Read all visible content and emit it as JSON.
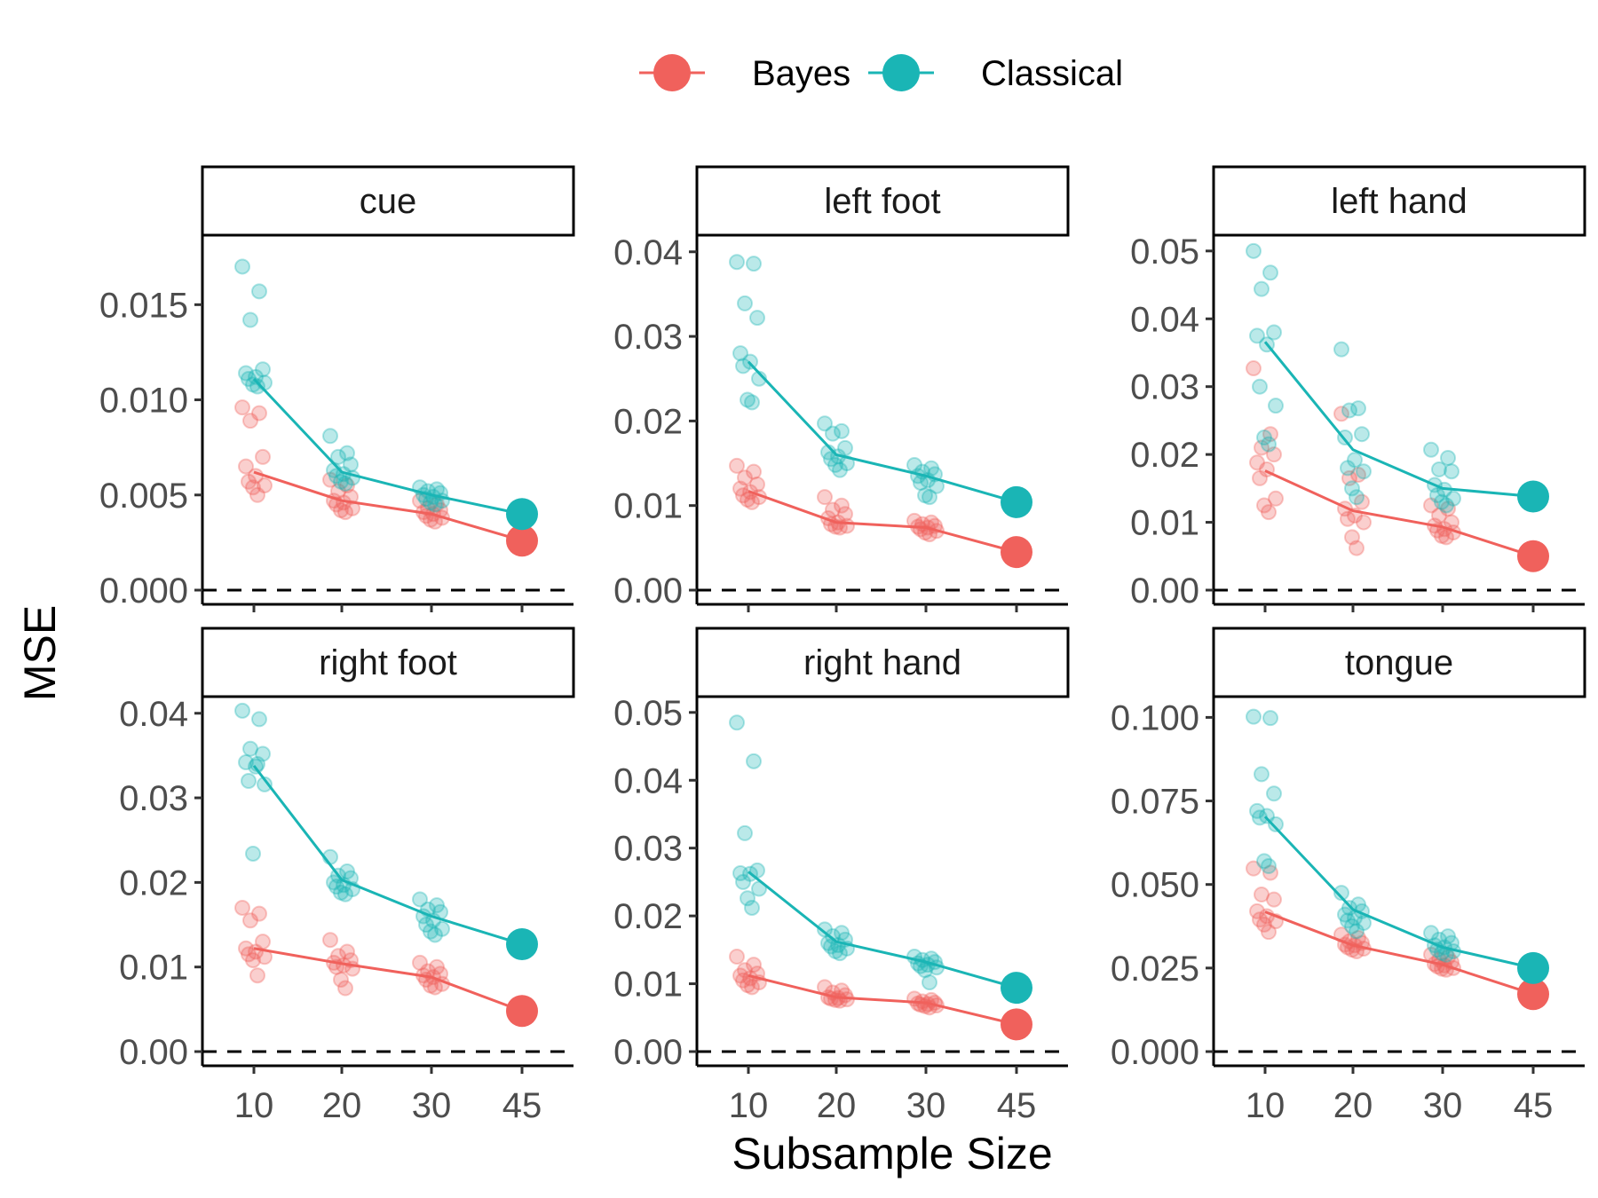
{
  "chart_data": {
    "type": "scatter",
    "xlabel": "Subsample Size",
    "ylabel": "MSE",
    "x_categories": [
      10,
      20,
      30,
      45
    ],
    "legend": {
      "position": "top",
      "entries": [
        {
          "name": "Bayes",
          "color": "#F0615C"
        },
        {
          "name": "Classical",
          "color": "#1AB5B5"
        }
      ]
    },
    "reference_line": {
      "y": 0,
      "style": "dashed"
    },
    "panels": [
      {
        "label": "cue",
        "ylim": [
          0,
          0.018
        ],
        "ticks": [
          0,
          0.005,
          0.01,
          0.015
        ],
        "tick_labels": [
          "0.000",
          "0.005",
          "0.010",
          "0.015"
        ],
        "series": [
          {
            "name": "Bayes",
            "mean": [
              0.0062,
              0.0047,
              0.004,
              0.0026
            ],
            "points": [
              [
                0.0096,
                0.0093,
                0.0089,
                0.007,
                0.0065,
                0.006,
                0.0057,
                0.0055,
                0.0054,
                0.005
              ],
              [
                0.0058,
                0.0055,
                0.0052,
                0.0049,
                0.0047,
                0.0046,
                0.0045,
                0.0043,
                0.0042,
                0.0041
              ],
              [
                0.0047,
                0.0045,
                0.0043,
                0.0042,
                0.0041,
                0.004,
                0.0039,
                0.0038,
                0.0037,
                0.0036
              ]
            ]
          },
          {
            "name": "Classical",
            "mean": [
              0.0111,
              0.0062,
              0.005,
              0.004
            ],
            "points": [
              [
                0.017,
                0.0157,
                0.0142,
                0.0116,
                0.0114,
                0.0112,
                0.0111,
                0.0109,
                0.0108,
                0.0107
              ],
              [
                0.0081,
                0.0072,
                0.007,
                0.0066,
                0.0063,
                0.0061,
                0.006,
                0.0059,
                0.0057,
                0.0056
              ],
              [
                0.0054,
                0.0053,
                0.0052,
                0.0051,
                0.005,
                0.0049,
                0.0048,
                0.0047,
                0.0046,
                0.0045
              ]
            ]
          }
        ]
      },
      {
        "label": "left foot",
        "ylim": [
          0,
          0.0405
        ],
        "ticks": [
          0,
          0.01,
          0.02,
          0.03,
          0.04
        ],
        "tick_labels": [
          "0.00",
          "0.01",
          "0.02",
          "0.03",
          "0.04"
        ],
        "series": [
          {
            "name": "Bayes",
            "mean": [
              0.0117,
              0.008,
              0.0074,
              0.0045
            ],
            "points": [
              [
                0.0147,
                0.014,
                0.0133,
                0.0125,
                0.012,
                0.0116,
                0.0112,
                0.011,
                0.0107,
                0.0104
              ],
              [
                0.011,
                0.01,
                0.0095,
                0.009,
                0.0085,
                0.008,
                0.0078,
                0.0076,
                0.0075,
                0.0074
              ],
              [
                0.0082,
                0.008,
                0.0078,
                0.0076,
                0.0075,
                0.0074,
                0.0072,
                0.007,
                0.0068,
                0.0066
              ]
            ]
          },
          {
            "name": "Classical",
            "mean": [
              0.027,
              0.016,
              0.0135,
              0.0104
            ],
            "points": [
              [
                0.0388,
                0.0386,
                0.0339,
                0.0322,
                0.028,
                0.027,
                0.0265,
                0.025,
                0.0225,
                0.0222
              ],
              [
                0.0197,
                0.0188,
                0.0185,
                0.0168,
                0.0163,
                0.0158,
                0.0155,
                0.015,
                0.0148,
                0.0142
              ],
              [
                0.0148,
                0.0144,
                0.014,
                0.0137,
                0.0135,
                0.013,
                0.0127,
                0.0123,
                0.0112,
                0.011
              ]
            ]
          }
        ]
      },
      {
        "label": "left hand",
        "ylim": [
          0,
          0.0505
        ],
        "ticks": [
          0,
          0.01,
          0.02,
          0.03,
          0.04,
          0.05
        ],
        "tick_labels": [
          "0.00",
          "0.01",
          "0.02",
          "0.03",
          "0.04",
          "0.05"
        ],
        "series": [
          {
            "name": "Bayes",
            "mean": [
              0.0176,
              0.0117,
              0.0093,
              0.005
            ],
            "points": [
              [
                0.0327,
                0.023,
                0.021,
                0.02,
                0.0188,
                0.0178,
                0.0165,
                0.0135,
                0.0125,
                0.0115
              ],
              [
                0.026,
                0.017,
                0.0165,
                0.013,
                0.012,
                0.011,
                0.0105,
                0.01,
                0.0078,
                0.0062
              ],
              [
                0.0125,
                0.012,
                0.011,
                0.01,
                0.0095,
                0.009,
                0.0088,
                0.0085,
                0.008,
                0.0078
              ]
            ]
          },
          {
            "name": "Classical",
            "mean": [
              0.0366,
              0.0207,
              0.015,
              0.0138
            ],
            "points": [
              [
                0.05,
                0.0468,
                0.0444,
                0.038,
                0.0375,
                0.0362,
                0.03,
                0.0272,
                0.0225,
                0.0215
              ],
              [
                0.0355,
                0.0268,
                0.0265,
                0.023,
                0.0225,
                0.0192,
                0.018,
                0.0175,
                0.015,
                0.0137
              ],
              [
                0.0207,
                0.0195,
                0.0178,
                0.0175,
                0.0155,
                0.0148,
                0.014,
                0.0135,
                0.013,
                0.0125
              ]
            ]
          }
        ]
      },
      {
        "label": "right foot",
        "ylim": [
          0,
          0.0405
        ],
        "ticks": [
          0,
          0.01,
          0.02,
          0.03,
          0.04
        ],
        "tick_labels": [
          "0.00",
          "0.01",
          "0.02",
          "0.03",
          "0.04"
        ],
        "series": [
          {
            "name": "Bayes",
            "mean": [
              0.0122,
              0.0104,
              0.0088,
              0.0048
            ],
            "points": [
              [
                0.017,
                0.0163,
                0.0155,
                0.013,
                0.0122,
                0.0118,
                0.0115,
                0.0112,
                0.0108,
                0.009
              ],
              [
                0.0132,
                0.0118,
                0.0113,
                0.0108,
                0.0105,
                0.0102,
                0.01,
                0.0098,
                0.0085,
                0.0075
              ],
              [
                0.0105,
                0.01,
                0.0095,
                0.0092,
                0.009,
                0.0088,
                0.0085,
                0.008,
                0.0078,
                0.0076
              ]
            ]
          },
          {
            "name": "Classical",
            "mean": [
              0.0338,
              0.0203,
              0.016,
              0.0127
            ],
            "points": [
              [
                0.0403,
                0.0393,
                0.0358,
                0.0352,
                0.0342,
                0.0337,
                0.032,
                0.0316,
                0.0234,
                0.034
              ],
              [
                0.023,
                0.0213,
                0.0208,
                0.0205,
                0.02,
                0.0197,
                0.0195,
                0.0192,
                0.0188,
                0.0186
              ],
              [
                0.018,
                0.0173,
                0.0168,
                0.0165,
                0.016,
                0.0155,
                0.015,
                0.0145,
                0.0142,
                0.0138
              ]
            ]
          }
        ]
      },
      {
        "label": "right hand",
        "ylim": [
          0,
          0.0505
        ],
        "ticks": [
          0,
          0.01,
          0.02,
          0.03,
          0.04,
          0.05
        ],
        "tick_labels": [
          "0.00",
          "0.01",
          "0.02",
          "0.03",
          "0.04",
          "0.05"
        ],
        "series": [
          {
            "name": "Bayes",
            "mean": [
              0.0112,
              0.008,
              0.0072,
              0.004
            ],
            "points": [
              [
                0.014,
                0.0128,
                0.012,
                0.0115,
                0.0112,
                0.0108,
                0.0105,
                0.0102,
                0.0098,
                0.0095
              ],
              [
                0.0095,
                0.009,
                0.0087,
                0.0083,
                0.008,
                0.0079,
                0.0078,
                0.0077,
                0.0076,
                0.0075
              ],
              [
                0.0078,
                0.0076,
                0.0074,
                0.0072,
                0.0071,
                0.007,
                0.0069,
                0.0068,
                0.0067,
                0.0065
              ]
            ]
          },
          {
            "name": "Classical",
            "mean": [
              0.0265,
              0.0162,
              0.0132,
              0.0094
            ],
            "points": [
              [
                0.0485,
                0.0428,
                0.0322,
                0.0267,
                0.0263,
                0.0262,
                0.025,
                0.024,
                0.0226,
                0.0212
              ],
              [
                0.018,
                0.0175,
                0.017,
                0.0165,
                0.016,
                0.0157,
                0.0155,
                0.0152,
                0.0148,
                0.0145
              ],
              [
                0.014,
                0.0137,
                0.0135,
                0.0132,
                0.013,
                0.0128,
                0.0126,
                0.0124,
                0.012,
                0.0102
              ]
            ]
          }
        ]
      },
      {
        "label": "tongue",
        "ylim": [
          0,
          0.1025
        ],
        "ticks": [
          0,
          0.025,
          0.05,
          0.075,
          0.1
        ],
        "tick_labels": [
          "0.000",
          "0.025",
          "0.050",
          "0.075",
          "0.100"
        ],
        "series": [
          {
            "name": "Bayes",
            "mean": [
              0.0418,
              0.0318,
              0.026,
              0.0172
            ],
            "points": [
              [
                0.0548,
                0.0535,
                0.047,
                0.0455,
                0.042,
                0.0405,
                0.0395,
                0.039,
                0.038,
                0.0358
              ],
              [
                0.035,
                0.034,
                0.033,
                0.0325,
                0.032,
                0.0318,
                0.0312,
                0.0308,
                0.0305,
                0.03
              ],
              [
                0.029,
                0.0282,
                0.0275,
                0.0268,
                0.0262,
                0.0258,
                0.0255,
                0.025,
                0.0248,
                0.0245
              ]
            ]
          },
          {
            "name": "Classical",
            "mean": [
              0.0703,
              0.0425,
              0.0312,
              0.025
            ],
            "points": [
              [
                0.1002,
                0.0998,
                0.083,
                0.0772,
                0.072,
                0.0705,
                0.07,
                0.068,
                0.057,
                0.0555
              ],
              [
                0.0475,
                0.044,
                0.043,
                0.042,
                0.041,
                0.04,
                0.0392,
                0.0385,
                0.0375,
                0.036
              ],
              [
                0.0355,
                0.0345,
                0.0335,
                0.0325,
                0.0318,
                0.0312,
                0.0305,
                0.03,
                0.0295,
                0.029
              ]
            ]
          }
        ]
      }
    ]
  }
}
